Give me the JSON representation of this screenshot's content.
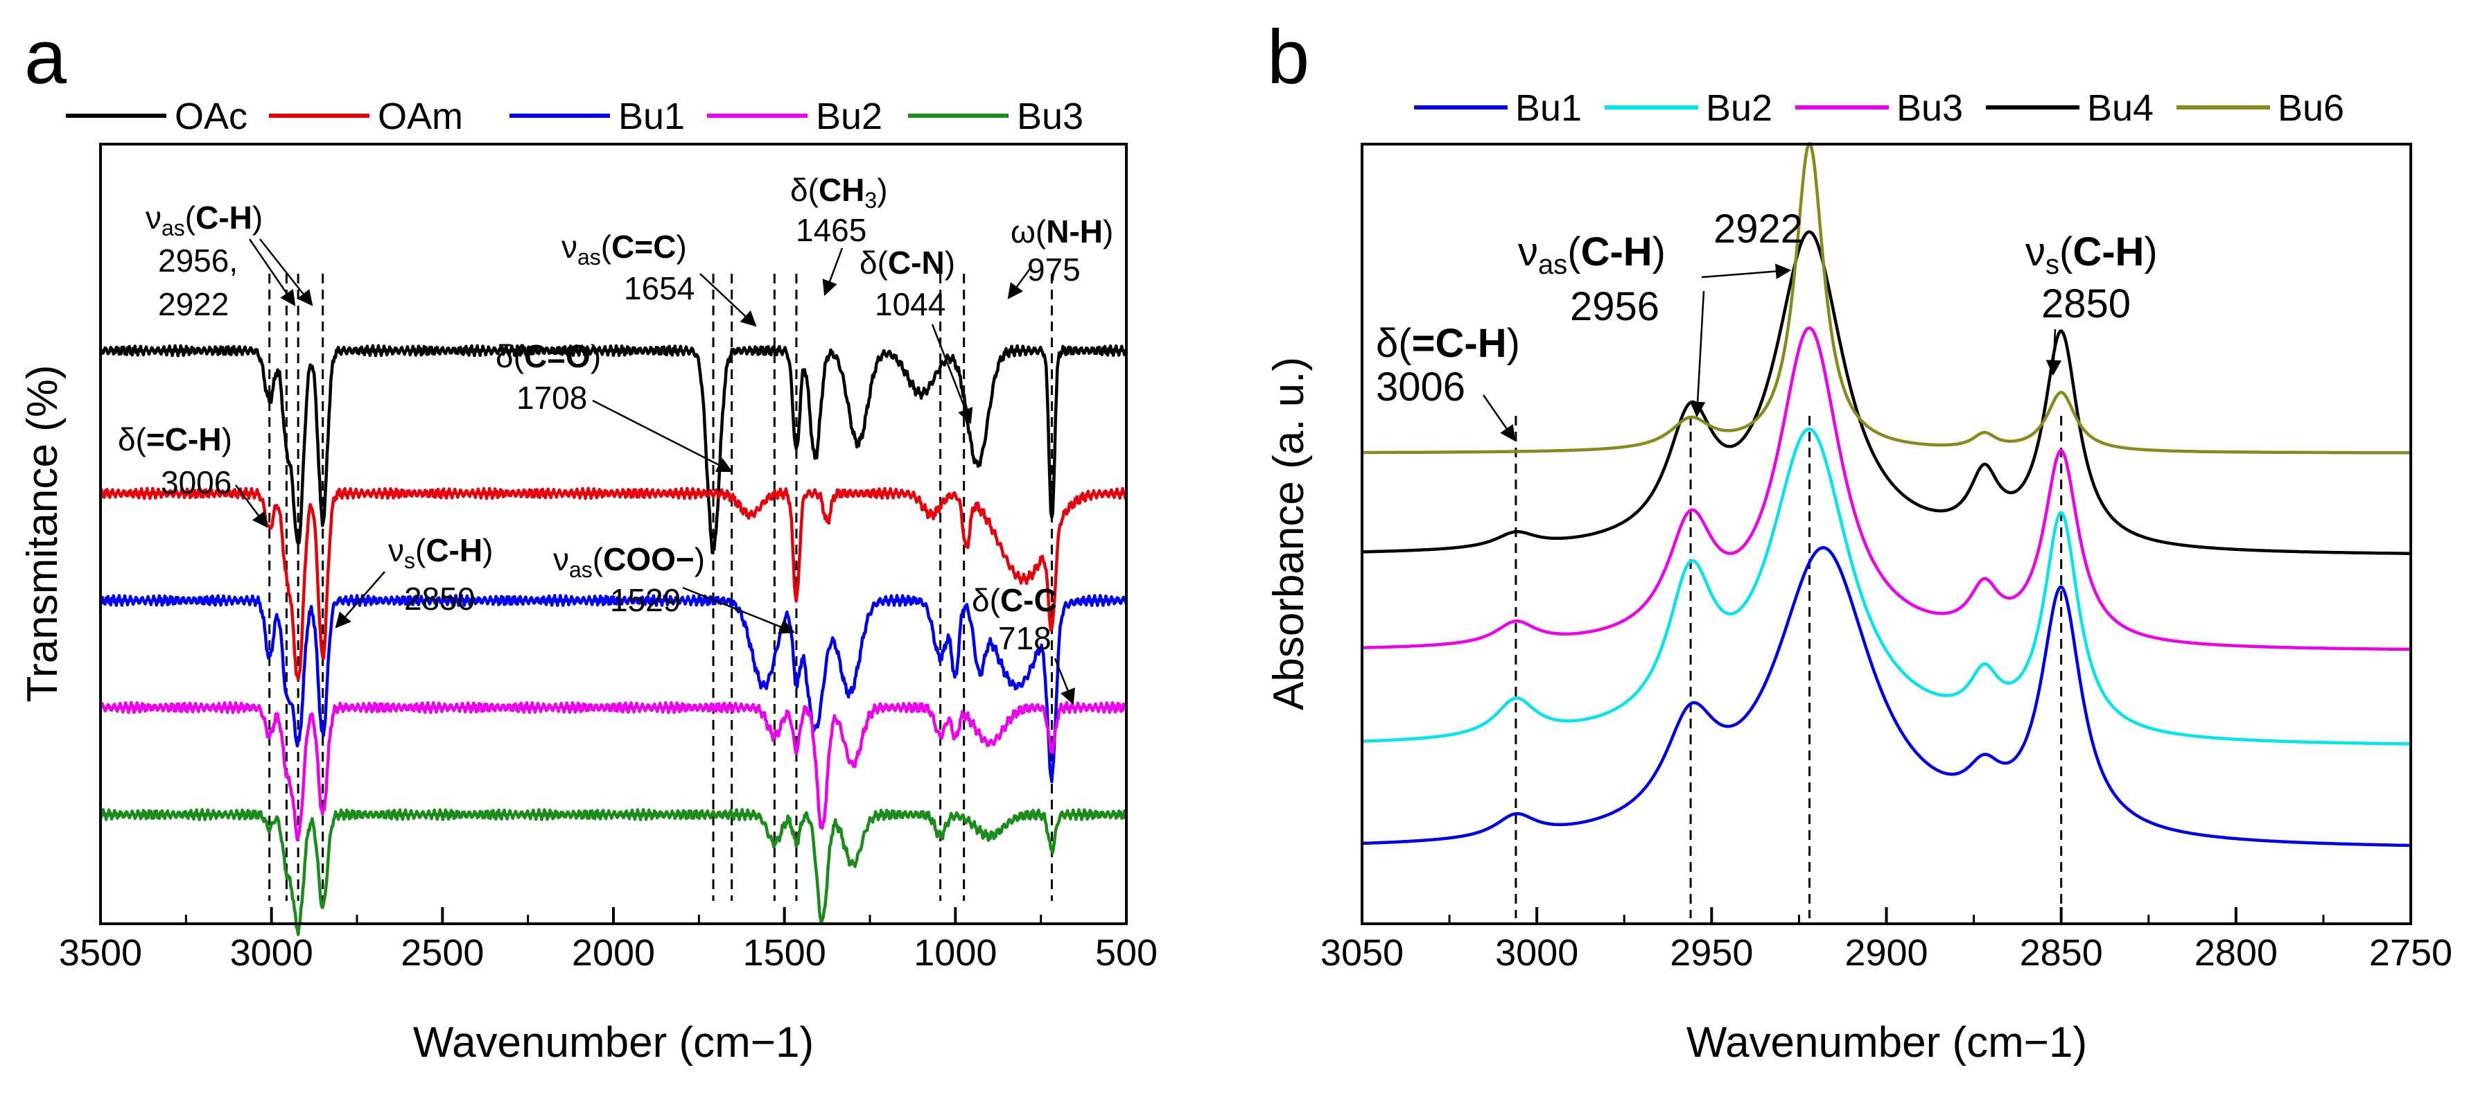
{
  "panels": [
    {
      "label": "a",
      "chart_data": {
        "type": "line",
        "title": "",
        "xlabel": "Wavenumber",
        "xlabel_unit": "(cm−1)",
        "ylabel": "Transmitance (%)",
        "xlim": [
          3500,
          500
        ],
        "xticks": [
          3500,
          3000,
          2500,
          2000,
          1500,
          1000,
          500
        ],
        "legend_position": "top",
        "series": [
          {
            "name": "OAc",
            "color": "#000000",
            "baseline": 0.8,
            "peaks": [
              [
                3006,
                14,
                0.07
              ],
              [
                2956,
                12,
                0.12
              ],
              [
                2922,
                15,
                0.27
              ],
              [
                2850,
                13,
                0.24
              ],
              [
                1708,
                18,
                0.28
              ],
              [
                1465,
                10,
                0.14
              ],
              [
                1410,
                15,
                0.15
              ],
              [
                1285,
                28,
                0.13
              ],
              [
                1100,
                40,
                0.06
              ],
              [
                935,
                30,
                0.16
              ],
              [
                718,
                8,
                0.24
              ]
            ]
          },
          {
            "name": "OAm",
            "color": "#e8000b",
            "baseline": 0.6,
            "peaks": [
              [
                3006,
                12,
                0.05
              ],
              [
                2956,
                12,
                0.1
              ],
              [
                2922,
                15,
                0.26
              ],
              [
                2850,
                13,
                0.23
              ],
              [
                1600,
                30,
                0.03
              ],
              [
                1465,
                9,
                0.15
              ],
              [
                1375,
                10,
                0.04
              ],
              [
                1070,
                25,
                0.03
              ],
              [
                968,
                10,
                0.07
              ],
              [
                800,
                70,
                0.12
              ],
              [
                718,
                10,
                0.13
              ]
            ]
          },
          {
            "name": "Bu1",
            "color": "#0000ee",
            "baseline": 0.45,
            "peaks": [
              [
                3006,
                12,
                0.08
              ],
              [
                2956,
                12,
                0.12
              ],
              [
                2922,
                15,
                0.2
              ],
              [
                2850,
                13,
                0.19
              ],
              [
                1560,
                35,
                0.12
              ],
              [
                1465,
                10,
                0.1
              ],
              [
                1410,
                25,
                0.18
              ],
              [
                1310,
                30,
                0.13
              ],
              [
                1044,
                20,
                0.08
              ],
              [
                1000,
                10,
                0.1
              ],
              [
                930,
                15,
                0.08
              ],
              [
                820,
                60,
                0.12
              ],
              [
                718,
                12,
                0.22
              ]
            ]
          },
          {
            "name": "Bu2",
            "color": "#ee00ee",
            "baseline": 0.3,
            "peaks": [
              [
                3006,
                12,
                0.04
              ],
              [
                2956,
                12,
                0.08
              ],
              [
                2922,
                15,
                0.18
              ],
              [
                2850,
                13,
                0.15
              ],
              [
                1529,
                20,
                0.04
              ],
              [
                1465,
                10,
                0.06
              ],
              [
                1390,
                15,
                0.17
              ],
              [
                1300,
                25,
                0.08
              ],
              [
                1044,
                15,
                0.04
              ],
              [
                1000,
                10,
                0.04
              ],
              [
                900,
                40,
                0.05
              ],
              [
                718,
                10,
                0.06
              ]
            ]
          },
          {
            "name": "Bu3",
            "color": "#1a8c1a",
            "baseline": 0.15,
            "peaks": [
              [
                3006,
                10,
                0.02
              ],
              [
                2956,
                12,
                0.07
              ],
              [
                2922,
                15,
                0.16
              ],
              [
                2850,
                13,
                0.13
              ],
              [
                1529,
                20,
                0.04
              ],
              [
                1465,
                10,
                0.04
              ],
              [
                1390,
                15,
                0.15
              ],
              [
                1300,
                25,
                0.07
              ],
              [
                1044,
                15,
                0.03
              ],
              [
                900,
                40,
                0.03
              ],
              [
                718,
                10,
                0.05
              ]
            ]
          }
        ],
        "reference_lines": [
          3006,
          2956,
          2922,
          2850,
          1708,
          1654,
          1529,
          1465,
          1044,
          975,
          718
        ],
        "annotations": [
          {
            "id": "vas-ch",
            "sym": "ν",
            "sub": "as",
            "pre": "(",
            "bold": "C-H",
            "post": ")",
            "value": "2956,"
          },
          {
            "id": "vas-ch-2",
            "value": "2922"
          },
          {
            "id": "vas-cc",
            "sym": "ν",
            "sub": "as",
            "pre": "(",
            "bold": "C=C",
            "post": ")",
            "value": "1654"
          },
          {
            "id": "d-ch3",
            "sym": "δ",
            "pre": "(",
            "bold": "CH",
            "boldsub": "3",
            "post": ")",
            "value": "1465"
          },
          {
            "id": "d-cn",
            "sym": "δ",
            "pre": "(",
            "bold": "C-N",
            "post": ")",
            "value": "1044"
          },
          {
            "id": "w-nh",
            "sym": "ω",
            "pre": "(",
            "bold": "N-H",
            "post": ")",
            "value": "975"
          },
          {
            "id": "d-co",
            "sym": "δ",
            "pre": "(",
            "bold": "C=O",
            "post": ")",
            "value": "1708"
          },
          {
            "id": "d-eq-ch",
            "sym": "δ",
            "pre": "(",
            "bold": "=C-H",
            "post": ")",
            "value": "3006"
          },
          {
            "id": "vs-ch",
            "sym": "ν",
            "sub": "s",
            "pre": "(",
            "bold": "C-H",
            "post": ")",
            "value": "2850"
          },
          {
            "id": "vas-coo",
            "sym": "ν",
            "sub": "as",
            "pre": "(",
            "bold": "COO−",
            "post": ")",
            "value": "1529"
          },
          {
            "id": "d-c-c",
            "sym": "δ",
            "pre": "(",
            "bold": "C-C",
            "post": "",
            "value": "718"
          }
        ]
      }
    },
    {
      "label": "b",
      "chart_data": {
        "type": "line",
        "title": "",
        "xlabel": "Wavenumber",
        "xlabel_unit": "(cm−1)",
        "ylabel": "Absorbance (a. u.)",
        "xlim": [
          3050,
          2750
        ],
        "xticks": [
          3050,
          3000,
          2950,
          2900,
          2850,
          2800,
          2750
        ],
        "legend_position": "top",
        "series": [
          {
            "name": "Bu1",
            "color": "#0000ee",
            "baseline": 0.06,
            "peaks": [
              [
                3006,
                7,
                0.03
              ],
              [
                2956,
                9,
                0.13
              ],
              [
                2918,
                17,
                0.4
              ],
              [
                2872,
                6,
                0.05
              ],
              [
                2850,
                7,
                0.33
              ]
            ]
          },
          {
            "name": "Bu2",
            "color": "#00e5ee",
            "baseline": 0.2,
            "peaks": [
              [
                3006,
                7,
                0.05
              ],
              [
                2956,
                8,
                0.19
              ],
              [
                2922,
                14,
                0.42
              ],
              [
                2872,
                5,
                0.06
              ],
              [
                2850,
                6,
                0.3
              ]
            ]
          },
          {
            "name": "Bu3",
            "color": "#ee00ee",
            "baseline": 0.33,
            "peaks": [
              [
                3006,
                7,
                0.03
              ],
              [
                2956,
                8,
                0.15
              ],
              [
                2922,
                11,
                0.43
              ],
              [
                2872,
                5,
                0.06
              ],
              [
                2850,
                6,
                0.26
              ]
            ]
          },
          {
            "name": "Bu4",
            "color": "#000000",
            "baseline": 0.46,
            "peaks": [
              [
                3006,
                7,
                0.02
              ],
              [
                2956,
                8,
                0.16
              ],
              [
                2922,
                12,
                0.43
              ],
              [
                2872,
                5,
                0.08
              ],
              [
                2850,
                6,
                0.29
              ]
            ]
          },
          {
            "name": "Bu6",
            "color": "#8a8a1a",
            "baseline": 0.6,
            "peaks": [
              [
                2956,
                7,
                0.04
              ],
              [
                2922,
                5,
                0.42
              ],
              [
                2872,
                4,
                0.02
              ],
              [
                2850,
                5,
                0.08
              ]
            ]
          }
        ],
        "reference_lines": [
          3006,
          2956,
          2922,
          2850
        ],
        "annotations": [
          {
            "id": "d-eq-ch",
            "sym": "δ",
            "pre": "(",
            "bold": "=C-H",
            "post": ")",
            "value": "3006"
          },
          {
            "id": "vas-ch",
            "sym": "ν",
            "sub": "as",
            "pre": "(",
            "bold": "C-H",
            "post": ")",
            "value": "2956"
          },
          {
            "id": "c2922",
            "value": "2922"
          },
          {
            "id": "vs-ch",
            "sym": "ν",
            "sub": "s",
            "pre": "(",
            "bold": "C-H",
            "post": ")",
            "value": "2850"
          }
        ]
      }
    }
  ]
}
